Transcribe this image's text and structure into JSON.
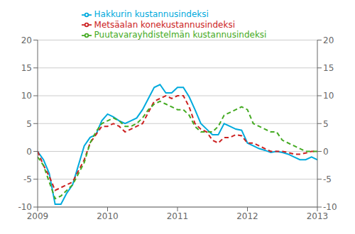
{
  "chart_data": {
    "type": "line",
    "x": [
      2009.0,
      2009.0833333333,
      2009.1666666667,
      2009.25,
      2009.3333333333,
      2009.4166666667,
      2009.5,
      2009.5833333333,
      2009.6666666667,
      2009.75,
      2009.8333333333,
      2009.9166666667,
      2010.0,
      2010.0833333333,
      2010.1666666667,
      2010.25,
      2010.3333333333,
      2010.4166666667,
      2010.5,
      2010.5833333333,
      2010.6666666667,
      2010.75,
      2010.8333333333,
      2010.9166666667,
      2011.0,
      2011.0833333333,
      2011.1666666667,
      2011.25,
      2011.3333333333,
      2011.4166666667,
      2011.5,
      2011.5833333333,
      2011.6666666667,
      2011.75,
      2011.8333333333,
      2011.9166666667,
      2012.0,
      2012.0833333333,
      2012.1666666667,
      2012.25,
      2012.3333333333,
      2012.4166666667,
      2012.5,
      2012.5833333333,
      2012.6666666667,
      2012.75,
      2012.8333333333,
      2012.9166666667,
      2013.0
    ],
    "series": [
      {
        "name": "Hakkurin kustannusindeksi",
        "color": "#00aadd",
        "line_style": "solid",
        "values": [
          0.0,
          -1.5,
          -4.0,
          -9.5,
          -9.5,
          -7.5,
          -6.0,
          -2.5,
          1.0,
          2.5,
          3.0,
          5.5,
          6.7,
          6.2,
          5.5,
          5.0,
          5.5,
          6.0,
          7.5,
          9.5,
          11.5,
          12.0,
          10.5,
          10.5,
          11.5,
          11.5,
          9.8,
          7.5,
          5.0,
          4.0,
          3.0,
          3.0,
          5.0,
          4.5,
          4.0,
          3.8,
          1.5,
          1.0,
          0.5,
          0.2,
          -0.2,
          0.0,
          -0.2,
          -0.5,
          -1.0,
          -1.5,
          -1.5,
          -1.0,
          -1.5
        ]
      },
      {
        "name": "Metsäalan konekustannusindeksi",
        "color": "#cc2222",
        "line_style": "dashed",
        "values": [
          0.0,
          -2.5,
          -4.5,
          -7.0,
          -6.5,
          -6.0,
          -5.5,
          -3.5,
          -1.5,
          1.5,
          3.0,
          4.5,
          4.5,
          5.0,
          4.5,
          3.5,
          4.0,
          4.5,
          5.0,
          7.0,
          9.0,
          9.5,
          10.0,
          9.5,
          10.0,
          10.0,
          8.0,
          5.0,
          4.0,
          3.5,
          2.0,
          1.5,
          2.5,
          2.5,
          3.0,
          2.8,
          1.5,
          1.5,
          1.0,
          0.5,
          0.0,
          0.0,
          0.0,
          -0.2,
          -0.5,
          -0.5,
          -0.3,
          0.0,
          0.0
        ]
      },
      {
        "name": "Puutavarayhdistelmän kustannusindeksi",
        "color": "#44aa22",
        "line_style": "dashed",
        "values": [
          -1.0,
          -2.5,
          -5.5,
          -8.5,
          -8.0,
          -7.0,
          -6.0,
          -4.0,
          -2.0,
          1.5,
          3.5,
          5.0,
          5.5,
          6.0,
          5.5,
          4.5,
          4.5,
          5.0,
          6.0,
          7.5,
          8.5,
          9.0,
          8.5,
          8.0,
          7.5,
          7.5,
          6.5,
          4.5,
          3.5,
          3.5,
          3.5,
          4.5,
          6.5,
          7.0,
          7.5,
          8.0,
          7.5,
          5.0,
          4.5,
          4.0,
          3.5,
          3.5,
          2.0,
          1.5,
          1.0,
          0.5,
          0.0,
          0.0,
          0.0
        ]
      }
    ],
    "xlim": [
      2009.0,
      2013.0
    ],
    "xticks": [
      2009,
      2010,
      2011,
      2012,
      2013
    ],
    "ylim": [
      -10,
      20
    ],
    "yticks": [
      -10,
      -5,
      0,
      5,
      10,
      15,
      20
    ],
    "y2lim": [
      -10,
      20
    ],
    "y2ticks": [
      -10,
      -5,
      0,
      5,
      10,
      15,
      20
    ],
    "grid": true,
    "legend": "top"
  }
}
